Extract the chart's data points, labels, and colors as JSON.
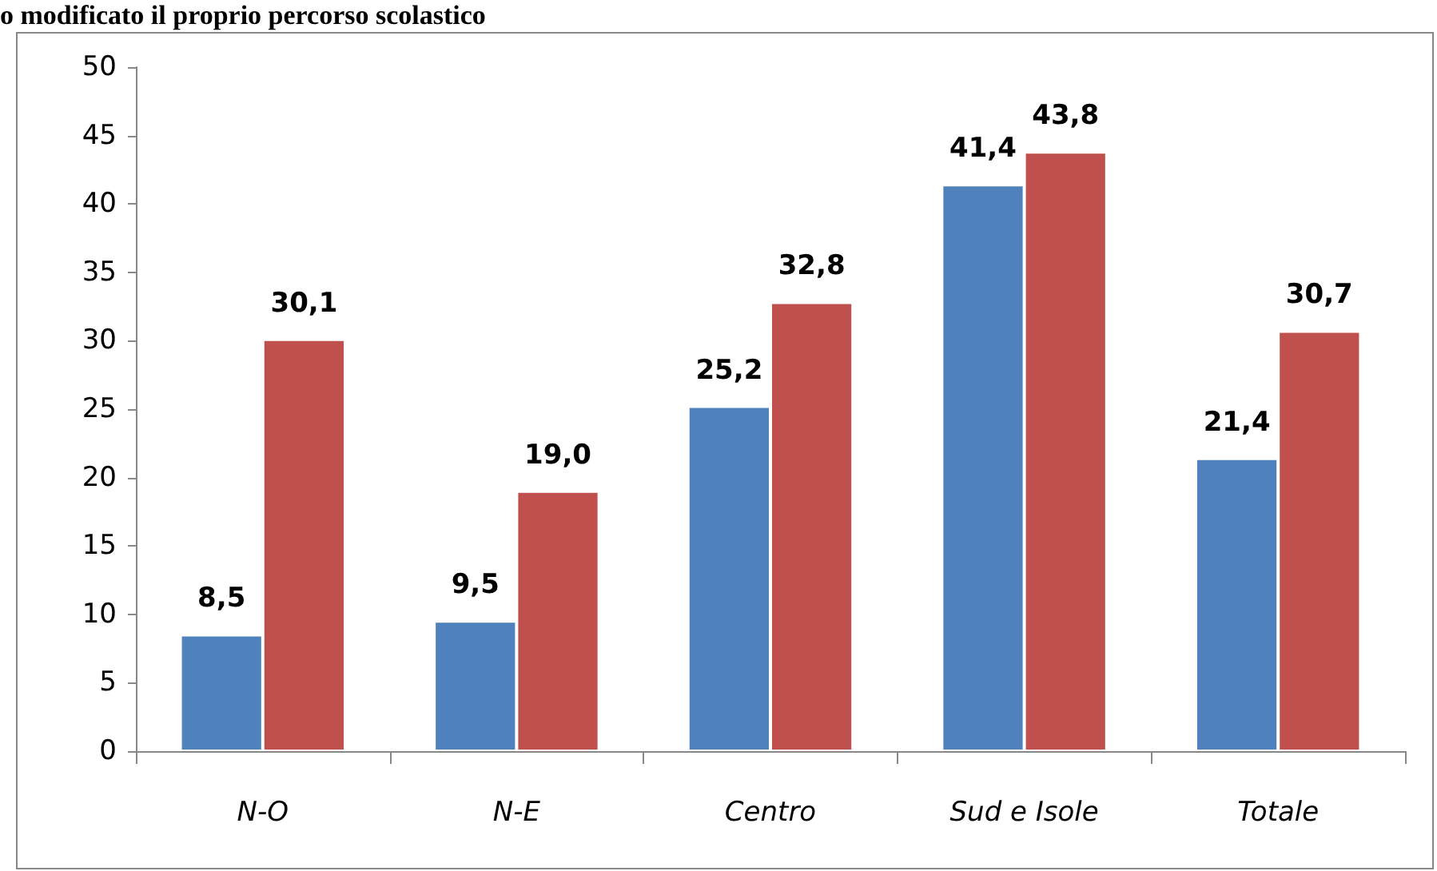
{
  "chart_data": {
    "type": "bar",
    "title": "o modificato il proprio percorso scolastico",
    "categories": [
      "N-O",
      "N-E",
      "Centro",
      "Sud e Isole",
      "Totale"
    ],
    "series": [
      {
        "color": "#4f81bd",
        "values": [
          8.5,
          9.5,
          25.2,
          41.4,
          21.4
        ],
        "value_labels": [
          "8,5",
          "9,5",
          "25,2",
          "41,4",
          "21,4"
        ]
      },
      {
        "color": "#c0504d",
        "values": [
          30.1,
          19.0,
          32.8,
          43.8,
          30.7
        ],
        "value_labels": [
          "30,1",
          "19,0",
          "32,8",
          "43,8",
          "30,7"
        ]
      }
    ],
    "ylim": [
      0,
      50
    ],
    "yticks": [
      0,
      5,
      10,
      15,
      20,
      25,
      30,
      35,
      40,
      45,
      50
    ],
    "grid": false
  }
}
